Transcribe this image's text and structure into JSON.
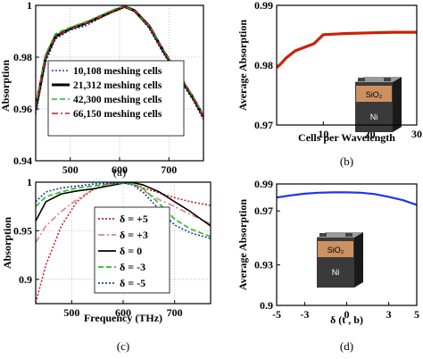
{
  "chart_data": [
    {
      "panel": "a",
      "caption": "(a)",
      "type": "line",
      "ylabel": "Absorption",
      "xlabel": "",
      "xlim": [
        430,
        770
      ],
      "ylim": [
        0.94,
        1.0
      ],
      "xticks": [
        "500",
        "600",
        "700"
      ],
      "yticks": [
        "0.94",
        "0.96",
        "0.98",
        "1"
      ],
      "grid": true,
      "legend_position": "bottom-right",
      "series": [
        {
          "name": "10,108  meshing cells",
          "color": "#1f3faa",
          "style": "dotted",
          "x": [
            430,
            450,
            470,
            500,
            530,
            560,
            590,
            610,
            630,
            660,
            690,
            720,
            750,
            770
          ],
          "y": [
            0.958,
            0.978,
            0.987,
            0.9905,
            0.992,
            0.995,
            0.998,
            0.9995,
            0.998,
            0.991,
            0.981,
            0.972,
            0.963,
            0.956
          ]
        },
        {
          "name": "21,312  meshing cells",
          "color": "#000000",
          "style": "solid",
          "x": [
            430,
            450,
            470,
            500,
            530,
            560,
            590,
            610,
            630,
            660,
            690,
            720,
            750,
            770
          ],
          "y": [
            0.96,
            0.98,
            0.988,
            0.991,
            0.993,
            0.9955,
            0.998,
            0.9995,
            0.998,
            0.992,
            0.982,
            0.973,
            0.964,
            0.957
          ]
        },
        {
          "name": "42,300  meshing cells",
          "color": "#22bb22",
          "style": "dashed",
          "x": [
            430,
            450,
            470,
            500,
            530,
            560,
            590,
            610,
            630,
            660,
            690,
            720,
            750,
            770
          ],
          "y": [
            0.961,
            0.981,
            0.989,
            0.9915,
            0.9935,
            0.996,
            0.9985,
            0.9995,
            0.998,
            0.992,
            0.9825,
            0.9735,
            0.9645,
            0.9575
          ]
        },
        {
          "name": "66,150  meshing cells",
          "color": "#cc1f1f",
          "style": "dashdot",
          "x": [
            430,
            450,
            470,
            500,
            530,
            560,
            590,
            610,
            630,
            660,
            690,
            720,
            750,
            770
          ],
          "y": [
            0.96,
            0.98,
            0.988,
            0.991,
            0.993,
            0.9955,
            0.998,
            0.9995,
            0.998,
            0.992,
            0.982,
            0.973,
            0.964,
            0.957
          ]
        }
      ]
    },
    {
      "panel": "b",
      "caption": "(b)",
      "type": "line",
      "ylabel": "Average Absorption",
      "xlabel": "Cells per Wavelength",
      "xlim": [
        0,
        30
      ],
      "ylim": [
        0.97,
        0.99
      ],
      "xticks": [
        "10",
        "20",
        "30"
      ],
      "yticks": [
        "0.97",
        "0.98",
        "0.99"
      ],
      "grid": false,
      "series": [
        {
          "name": "",
          "color": "#cc2200",
          "style": "solid",
          "x": [
            0,
            1,
            2,
            4,
            6,
            8,
            10,
            15,
            20,
            25,
            30
          ],
          "y": [
            0.9796,
            0.9803,
            0.9812,
            0.9824,
            0.983,
            0.9836,
            0.9851,
            0.9853,
            0.9854,
            0.9855,
            0.9855
          ]
        }
      ],
      "inset": {
        "labels": [
          "SiO₂",
          "Ni"
        ]
      }
    },
    {
      "panel": "c",
      "caption": "(c)",
      "type": "line",
      "ylabel": "Absorption",
      "xlabel": "Frequency (THz)",
      "xlim": [
        430,
        770
      ],
      "ylim": [
        0.875,
        1.0
      ],
      "xticks": [
        "500",
        "600",
        "700"
      ],
      "yticks": [
        "0.9",
        "0.95",
        "1"
      ],
      "grid": true,
      "legend_position": "center",
      "series": [
        {
          "name": "δ = +5",
          "color": "#cc1f1f",
          "style": "dotted",
          "x": [
            430,
            450,
            480,
            510,
            540,
            570,
            600,
            620,
            640,
            670,
            700,
            730,
            770
          ],
          "y": [
            0.876,
            0.915,
            0.955,
            0.98,
            0.992,
            0.998,
            1.0,
            0.998,
            0.994,
            0.989,
            0.984,
            0.98,
            0.976
          ]
        },
        {
          "name": "δ = +3",
          "color": "#e08080",
          "style": "dashdot",
          "x": [
            430,
            450,
            480,
            510,
            540,
            570,
            600,
            620,
            640,
            670,
            700,
            730,
            770
          ],
          "y": [
            0.938,
            0.955,
            0.97,
            0.982,
            0.992,
            0.998,
            1.0,
            0.998,
            0.991,
            0.982,
            0.975,
            0.967,
            0.957
          ]
        },
        {
          "name": "δ =  0",
          "color": "#000000",
          "style": "solid",
          "x": [
            430,
            450,
            480,
            510,
            540,
            570,
            600,
            620,
            640,
            670,
            700,
            730,
            770
          ],
          "y": [
            0.96,
            0.98,
            0.988,
            0.991,
            0.993,
            0.996,
            0.999,
            0.9995,
            0.997,
            0.99,
            0.98,
            0.97,
            0.955
          ]
        },
        {
          "name": "δ = -3",
          "color": "#22bb22",
          "style": "dashed",
          "x": [
            430,
            450,
            480,
            510,
            540,
            570,
            600,
            620,
            640,
            670,
            700,
            730,
            770
          ],
          "y": [
            0.975,
            0.985,
            0.99,
            0.994,
            0.996,
            0.998,
            0.999,
            0.998,
            0.993,
            0.978,
            0.962,
            0.952,
            0.944
          ]
        },
        {
          "name": "δ = -5",
          "color": "#1f3faa",
          "style": "dotted",
          "x": [
            430,
            450,
            480,
            510,
            540,
            570,
            600,
            620,
            640,
            670,
            700,
            730,
            770
          ],
          "y": [
            0.98,
            0.99,
            0.994,
            0.996,
            0.998,
            0.999,
            0.999,
            0.997,
            0.989,
            0.972,
            0.956,
            0.948,
            0.942
          ]
        }
      ]
    },
    {
      "panel": "d",
      "caption": "(d)",
      "type": "line",
      "ylabel": "Average Absorption",
      "xlabel": "δ (t , b)",
      "xlim": [
        -5,
        5
      ],
      "ylim": [
        0.9,
        0.99
      ],
      "xticks": [
        "-5",
        "-3",
        "0",
        "3",
        "5"
      ],
      "yticks": [
        "0.9",
        "0.93",
        "0.97",
        "0.99"
      ],
      "grid": false,
      "series": [
        {
          "name": "",
          "color": "#1f35ee",
          "style": "solid",
          "x": [
            -5,
            -4,
            -3,
            -2,
            -1,
            0,
            1,
            2,
            3,
            4,
            5
          ],
          "y": [
            0.98,
            0.9815,
            0.9828,
            0.9835,
            0.9838,
            0.9838,
            0.9835,
            0.9825,
            0.9805,
            0.978,
            0.9745
          ]
        }
      ],
      "inset": {
        "labels": [
          "SiO₂",
          "Ni"
        ]
      }
    }
  ]
}
